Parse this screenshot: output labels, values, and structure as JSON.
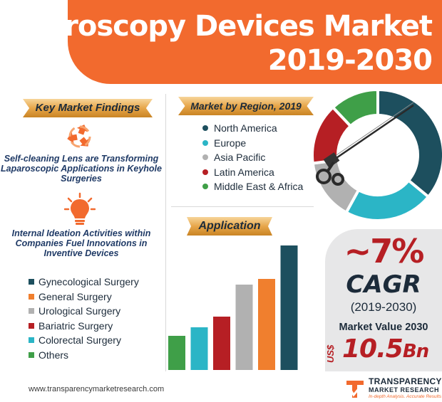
{
  "header": {
    "title_line1": "Laparoscopy Devices Market",
    "title_line2": "2019-2030"
  },
  "findings": {
    "heading": "Key Market Findings",
    "items": [
      {
        "text": "Self-cleaning Lens are Transforming Laparoscopic Applications in Keyhole Surgeries",
        "icon": "recycle-icon"
      },
      {
        "text": "Internal Ideation Activities within Companies Fuel Innovations in Inventive Devices",
        "icon": "lightbulb-icon"
      }
    ]
  },
  "colors": {
    "navy": "#1d4f5e",
    "teal": "#2bb5c6",
    "gray": "#b1b1b1",
    "red": "#b61f24",
    "green": "#3f9f48",
    "orange": "#f07f2e",
    "brand": "#f26a2e"
  },
  "chart_data": [
    {
      "type": "pie",
      "title": "Market by Region, 2019",
      "categories": [
        "North America",
        "Europe",
        "Asia Pacific",
        "Latin America",
        "Middle East & Africa"
      ],
      "values": [
        36,
        22,
        15,
        15,
        12
      ],
      "colors": [
        "#1d4f5e",
        "#2bb5c6",
        "#b1b1b1",
        "#b61f24",
        "#3f9f48"
      ],
      "legend": "left"
    },
    {
      "type": "bar",
      "title": "Application",
      "categories": [
        "Others",
        "Colorectal Surgery",
        "Bariatric Surgery",
        "Urological Surgery",
        "General Surgery",
        "Gynecological Surgery"
      ],
      "values": [
        48,
        60,
        75,
        120,
        128,
        175
      ],
      "colors": [
        "#3f9f48",
        "#2bb5c6",
        "#b61f24",
        "#b1b1b1",
        "#f07f2e",
        "#1d4f5e"
      ],
      "legend_order": [
        "Gynecological Surgery",
        "General Surgery",
        "Urological Surgery",
        "Bariatric Surgery",
        "Colorectal Surgery",
        "Others"
      ],
      "legend_colors": [
        "#1d4f5e",
        "#f07f2e",
        "#b1b1b1",
        "#b61f24",
        "#2bb5c6",
        "#3f9f48"
      ],
      "legend": "left",
      "ylim": [
        0,
        180
      ],
      "axis_labels": false
    }
  ],
  "cagr": {
    "value": "~7%",
    "label": "CAGR",
    "period": "(2019-2030)"
  },
  "market_value": {
    "label": "Market Value 2030",
    "unit": "US$",
    "value": "10.5",
    "suffix": "Bn"
  },
  "footer": {
    "url": "www.transparencymarketresearch.com",
    "logo_line1": "TRANSPARENCY",
    "logo_line2": "MARKET RESEARCH",
    "logo_line3": "In-depth Analysis. Accurate Results"
  }
}
